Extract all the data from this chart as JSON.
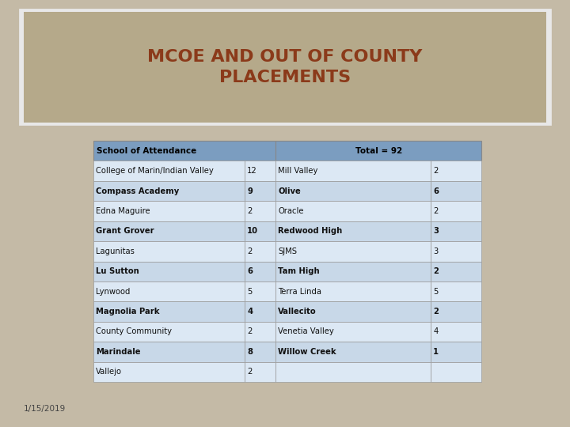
{
  "title": "MCOE AND OUT OF COUNTY\nPLACEMENTS",
  "title_color": "#8B3A1A",
  "title_bg_color": "#B5A98A",
  "bg_color": "#C4BAA6",
  "date_text": "1/15/2019",
  "date_color": "#444444",
  "header_bg": "#7B9DC0",
  "header_text_color": "#000000",
  "row_bg_odd": "#C8D8E8",
  "row_bg_even": "#DCE8F4",
  "header_left": "School of Attendance",
  "header_right": "Total = 92",
  "left_data": [
    [
      "College of Marin/Indian Valley",
      "12"
    ],
    [
      "Compass Academy",
      "9"
    ],
    [
      "Edna Maguire",
      "2"
    ],
    [
      "Grant Grover",
      "10"
    ],
    [
      "Lagunitas",
      "2"
    ],
    [
      "Lu Sutton",
      "6"
    ],
    [
      "Lynwood",
      "5"
    ],
    [
      "Magnolia Park",
      "4"
    ],
    [
      "County Community",
      "2"
    ],
    [
      "Marindale",
      "8"
    ],
    [
      "Vallejo",
      "2"
    ]
  ],
  "right_data": [
    [
      "Mill Valley",
      "2"
    ],
    [
      "Olive",
      "6"
    ],
    [
      "Oracle",
      "2"
    ],
    [
      "Redwood High",
      "3"
    ],
    [
      "SJMS",
      "3"
    ],
    [
      "Tam High",
      "2"
    ],
    [
      "Terra Linda",
      "5"
    ],
    [
      "Vallecito",
      "2"
    ],
    [
      "Venetia Valley",
      "4"
    ],
    [
      "Willow Creek",
      "1"
    ],
    [
      "",
      ""
    ]
  ]
}
